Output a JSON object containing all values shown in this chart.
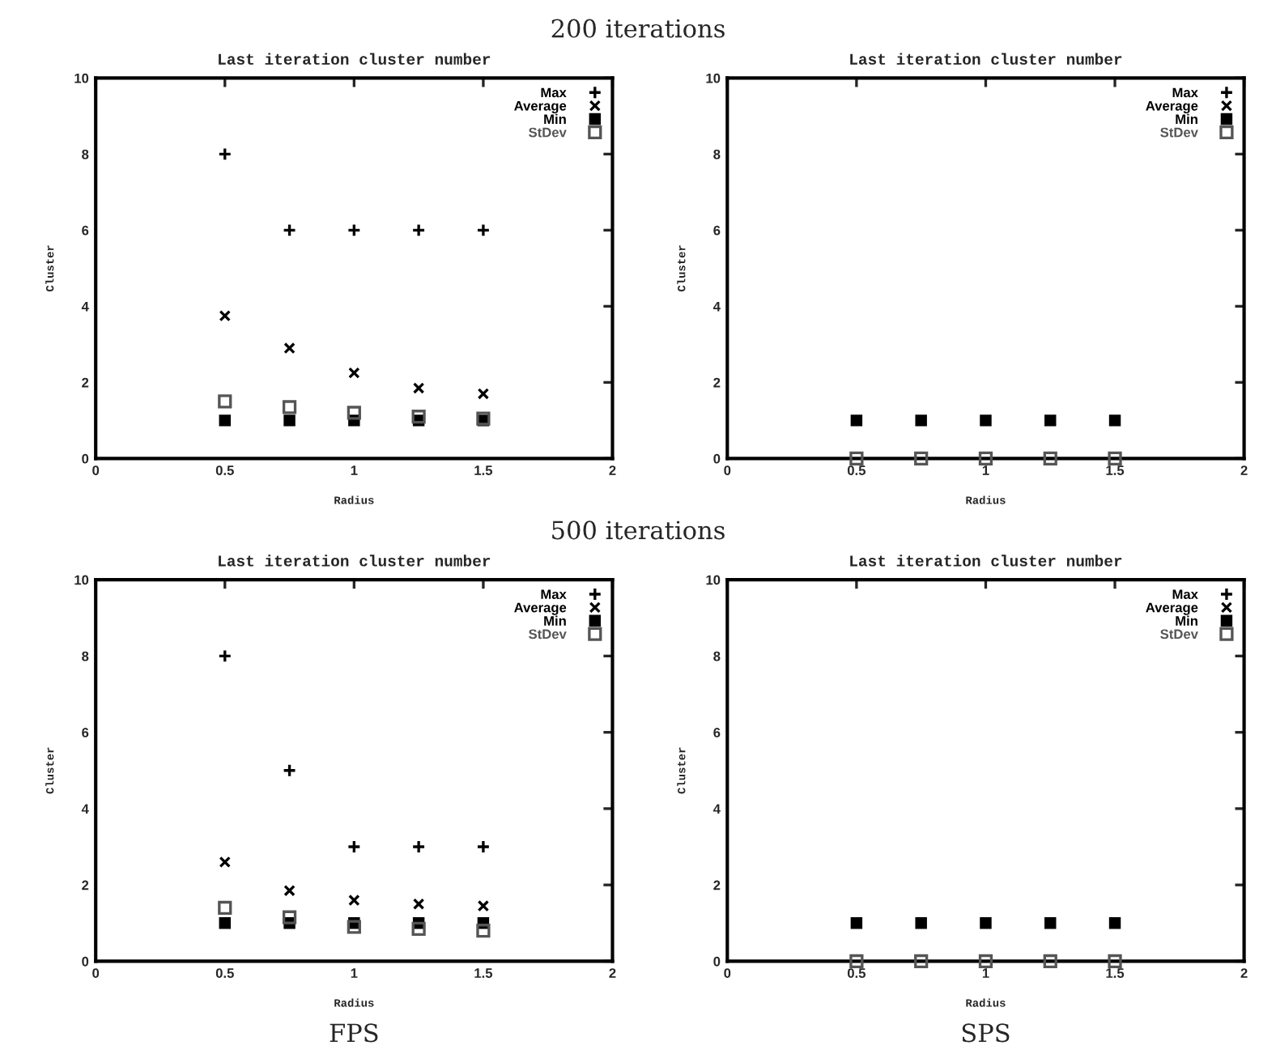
{
  "chart_data": [
    {
      "type": "scatter",
      "title": "Last iteration cluster number",
      "xlabel": "Radius",
      "ylabel": "Cluster",
      "annotations": [
        "200 iterations"
      ],
      "x": [
        0.5,
        0.75,
        1,
        1.25,
        1.5
      ],
      "xlim": [
        0,
        2
      ],
      "xticks": [
        0,
        0.5,
        1,
        1.5,
        2
      ],
      "ylim": [
        0,
        10
      ],
      "yticks": [
        0,
        2,
        4,
        6,
        8,
        10
      ],
      "legend": "top right",
      "grid": false,
      "series": [
        {
          "name": "Max",
          "color": "#000000",
          "marker": "cross",
          "values": [
            8,
            6,
            6,
            6,
            6
          ]
        },
        {
          "name": "Average",
          "color": "#000000",
          "marker": "x",
          "values": [
            3.75,
            2.9,
            2.25,
            1.85,
            1.7
          ]
        },
        {
          "name": "Min",
          "color": "#000000",
          "marker": "square",
          "values": [
            1,
            1,
            1,
            1,
            1
          ]
        },
        {
          "name": "StDev",
          "color": "#555555",
          "marker": "square",
          "values": [
            1.5,
            1.35,
            1.2,
            1.1,
            1.05
          ]
        }
      ]
    },
    {
      "type": "scatter",
      "title": "Last iteration cluster number",
      "xlabel": "Radius",
      "ylabel": "Cluster",
      "x": [
        0.5,
        0.75,
        1,
        1.25,
        1.5
      ],
      "xlim": [
        0,
        2
      ],
      "xticks": [
        0,
        0.5,
        1,
        1.5,
        2
      ],
      "ylim": [
        0,
        10
      ],
      "yticks": [
        0,
        2,
        4,
        6,
        8,
        10
      ],
      "legend": "top right",
      "grid": false,
      "series": [
        {
          "name": "Max",
          "color": "#000000",
          "marker": "cross",
          "values": [
            null,
            null,
            null,
            null,
            null
          ]
        },
        {
          "name": "Average",
          "color": "#000000",
          "marker": "x",
          "values": [
            null,
            null,
            null,
            null,
            null
          ]
        },
        {
          "name": "Min",
          "color": "#000000",
          "marker": "square",
          "values": [
            1,
            1,
            1,
            1,
            1
          ]
        },
        {
          "name": "StDev",
          "color": "#555555",
          "marker": "square",
          "values": [
            0,
            0,
            0,
            0,
            0
          ]
        }
      ]
    },
    {
      "type": "scatter",
      "title": "Last iteration cluster number",
      "xlabel": "Radius",
      "ylabel": "Cluster",
      "annotations": [
        "500 iterations",
        "FPS"
      ],
      "x": [
        0.5,
        0.75,
        1,
        1.25,
        1.5
      ],
      "xlim": [
        0,
        2
      ],
      "xticks": [
        0,
        0.5,
        1,
        1.5,
        2
      ],
      "ylim": [
        0,
        10
      ],
      "yticks": [
        0,
        2,
        4,
        6,
        8,
        10
      ],
      "legend": "top right",
      "grid": false,
      "series": [
        {
          "name": "Max",
          "color": "#000000",
          "marker": "cross",
          "values": [
            8,
            5,
            3,
            3,
            3
          ]
        },
        {
          "name": "Average",
          "color": "#000000",
          "marker": "x",
          "values": [
            2.6,
            1.85,
            1.6,
            1.5,
            1.45
          ]
        },
        {
          "name": "Min",
          "color": "#000000",
          "marker": "square",
          "values": [
            1,
            1,
            1,
            1,
            1
          ]
        },
        {
          "name": "StDev",
          "color": "#555555",
          "marker": "square",
          "values": [
            1.4,
            1.15,
            0.9,
            0.85,
            0.8
          ]
        }
      ]
    },
    {
      "type": "scatter",
      "title": "Last iteration cluster number",
      "xlabel": "Radius",
      "ylabel": "Cluster",
      "annotations": [
        "SPS"
      ],
      "x": [
        0.5,
        0.75,
        1,
        1.25,
        1.5
      ],
      "xlim": [
        0,
        2
      ],
      "xticks": [
        0,
        0.5,
        1,
        1.5,
        2
      ],
      "ylim": [
        0,
        10
      ],
      "yticks": [
        0,
        2,
        4,
        6,
        8,
        10
      ],
      "legend": "top right",
      "grid": false,
      "series": [
        {
          "name": "Max",
          "color": "#000000",
          "marker": "cross",
          "values": [
            null,
            null,
            null,
            null,
            null
          ]
        },
        {
          "name": "Average",
          "color": "#000000",
          "marker": "x",
          "values": [
            null,
            null,
            null,
            null,
            null
          ]
        },
        {
          "name": "Min",
          "color": "#000000",
          "marker": "square",
          "values": [
            1,
            1,
            1,
            1,
            1
          ]
        },
        {
          "name": "StDev",
          "color": "#555555",
          "marker": "square",
          "values": [
            0,
            0,
            0,
            0,
            0
          ]
        }
      ]
    }
  ]
}
